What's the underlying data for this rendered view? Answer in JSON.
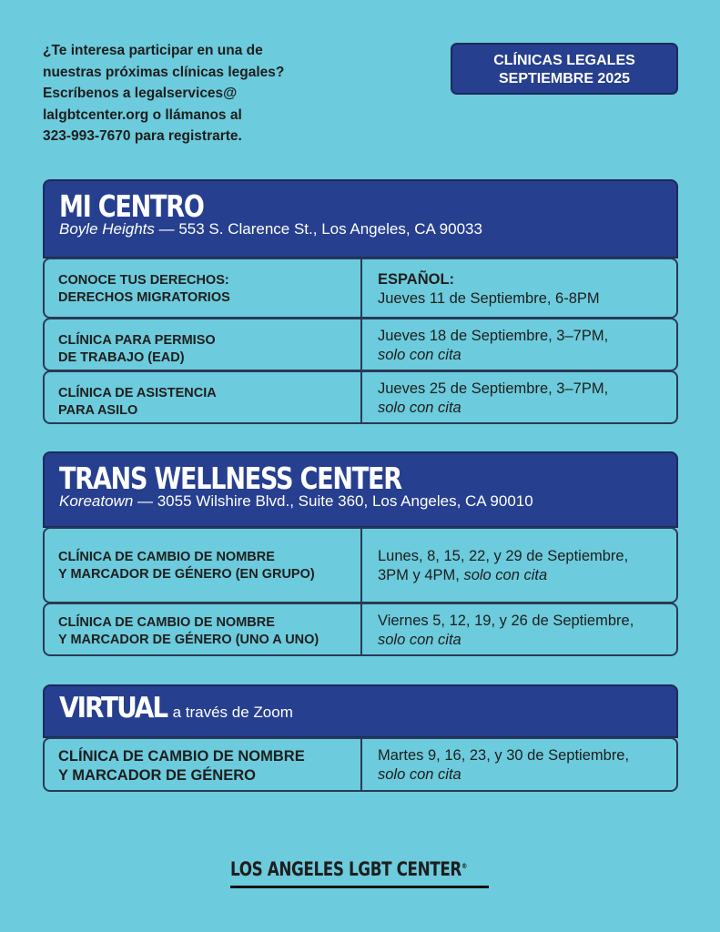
{
  "intro": {
    "lines": [
      "¿Te interesa participar en una de",
      "nuestras próximas clínicas legales?",
      "Escríbenos a legalservices@",
      "lalgbtcenter.org o llámanos al",
      "323-993-7670 para registrarte."
    ]
  },
  "badge": {
    "line1": "CLÍNICAS LEGALES",
    "line2": "SEPTIEMBRE 2025"
  },
  "colors": {
    "background": "#6ccbdc",
    "header": "#263f8f"
  },
  "sections": [
    {
      "title": "MI CENTRO",
      "place": "Boyle Heights",
      "address": " — 553 S. Clarence St., Los Angeles, CA 90033",
      "rows": [
        {
          "l1": "CONOCE TUS DERECHOS:",
          "l2": "DERECHOS MIGRATORIOS",
          "r1": "ESPAÑOL:",
          "r2": "Jueves 11 de Septiembre, 6-8PM"
        },
        {
          "l1": "CLÍNICA PARA PERMISO",
          "l2": "DE TRABAJO (EAD)",
          "r1": "Jueves 18 de Septiembre, 3–7PM,",
          "r2": "solo con cita"
        },
        {
          "l1": "CLÍNICA DE ASISTENCIA",
          "l2": "PARA ASILO",
          "r1": "Jueves 25 de Septiembre, 3–7PM,",
          "r2": "solo con cita"
        }
      ]
    },
    {
      "title": "TRANS WELLNESS CENTER",
      "place": "Koreatown",
      "address": " — 3055 Wilshire Blvd., Suite 360, Los Angeles, CA 90010",
      "rows": [
        {
          "l1": "CLÍNICA DE CAMBIO DE NOMBRE",
          "l2": "Y MARCADOR DE GÉNERO (EN GRUPO)",
          "r1": "Lunes, 8, 15, 22, y 29 de Septiembre,",
          "r2a": "3PM y 4PM, ",
          "r2": "solo con cita"
        },
        {
          "l1": "CLÍNICA DE CAMBIO DE NOMBRE",
          "l2": "Y MARCADOR DE GÉNERO (UNO A UNO)",
          "r1": "Viernes 5, 12, 19, y 26 de Septiembre,",
          "r2": "solo con cita"
        }
      ]
    },
    {
      "title": "VIRTUAL",
      "subtitle": "a través de Zoom",
      "rows": [
        {
          "l1": "CLÍNICA DE CAMBIO DE NOMBRE",
          "l2": "Y MARCADOR DE GÉNERO",
          "r1": "Martes 9, 16, 23, y 30 de Septiembre,",
          "r2": "solo con cita"
        }
      ]
    }
  ],
  "footer": {
    "logo": "LOS ANGELES LGBT CENTER",
    "mark": "®"
  }
}
